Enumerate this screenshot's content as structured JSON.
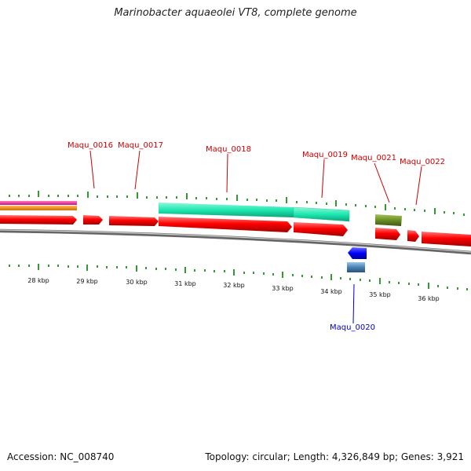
{
  "title": "Marinobacter aquaeolei VT8, complete genome",
  "footer": {
    "accession": "Accession: NC_008740",
    "summary": "Topology: circular; Length: 4,326,849 bp; Genes: 3,921"
  },
  "colors": {
    "forward_cds": "#ff0000",
    "reverse_cds": "#0000ff",
    "reverse_gene": "#4682b4",
    "feature_cyan": "#1de8b0",
    "feature_olive": "#6b8e23",
    "feature_magenta": "#ff1493",
    "feature_orange": "#ff8c00",
    "backbone": "#888888",
    "ticks": "#008000",
    "forward_label": "#cc0000",
    "reverse_label": "#0000cc"
  },
  "axis": {
    "unit": "kbp",
    "labels": [
      "28 kbp",
      "29 kbp",
      "30 kbp",
      "31 kbp",
      "32 kbp",
      "33 kbp",
      "34 kbp",
      "35 kbp",
      "36 kbp"
    ]
  },
  "genes": {
    "forward": [
      "Maqu_0016",
      "Maqu_0017",
      "Maqu_0018",
      "Maqu_0019",
      "Maqu_0021",
      "Maqu_0022"
    ],
    "reverse": [
      "Maqu_0020"
    ]
  }
}
